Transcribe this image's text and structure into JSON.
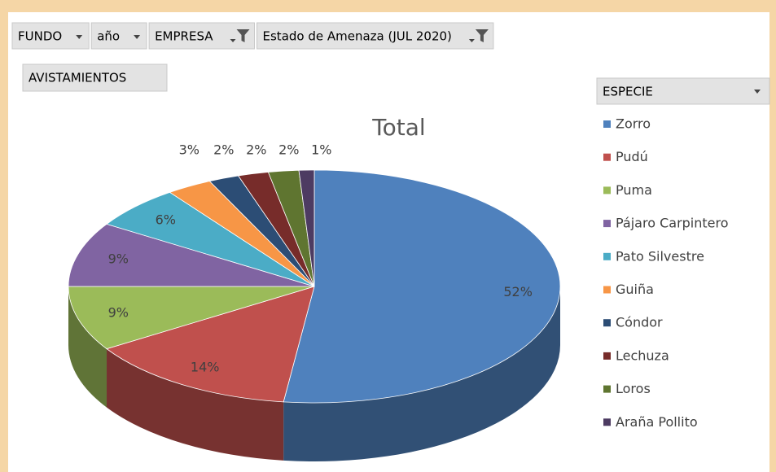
{
  "pivot": {
    "filters": [
      {
        "label": "FUNDO",
        "filtered": false
      },
      {
        "label": "año",
        "filtered": false
      },
      {
        "label": "EMPRESA",
        "filtered": true
      },
      {
        "label": "Estado de Amenaza (JUL 2020)",
        "filtered": true
      }
    ],
    "values_field": "AVISTAMIENTOS"
  },
  "chart_data": {
    "type": "pie",
    "title": "Total",
    "legend_title": "ESPECIE",
    "legend": "right",
    "categories": [
      "Zorro",
      "Pudú",
      "Puma",
      "Pájaro Carpintero",
      "Pato Silvestre",
      "Guiña",
      "Cóndor",
      "Lechuza",
      "Loros",
      "Araña Pollito"
    ],
    "values": [
      52,
      14,
      9,
      9,
      6,
      3,
      2,
      2,
      2,
      1
    ],
    "value_labels": [
      "52%",
      "14%",
      "9%",
      "9%",
      "6%",
      "3%",
      "2%",
      "2%",
      "2%",
      "1%"
    ],
    "colors": [
      "#4f81bd",
      "#c0504d",
      "#9bbb59",
      "#8064a2",
      "#4bacc6",
      "#f79646",
      "#2c4d75",
      "#772c2a",
      "#5f7530",
      "#4d3b62"
    ]
  }
}
